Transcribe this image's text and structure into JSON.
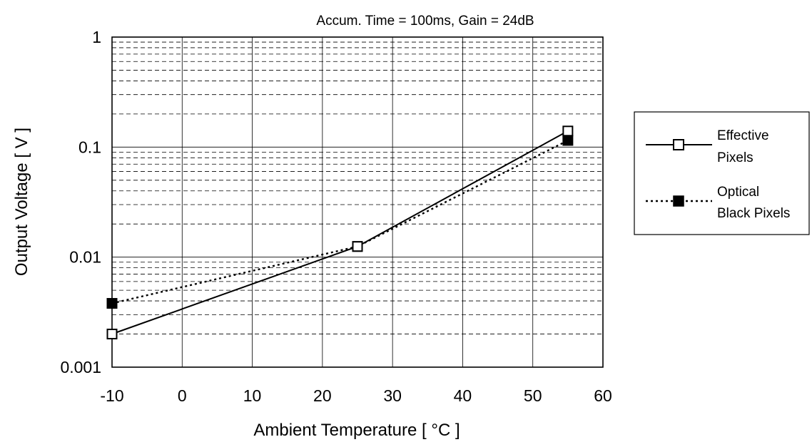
{
  "chart_data": {
    "type": "line",
    "title": "Accum. Time = 100ms,  Gain = 24dB",
    "xlabel": "Ambient Temperature  [ °C ]",
    "ylabel": "Output Voltage  [ V ]",
    "xlim": [
      -10,
      60
    ],
    "ylim": [
      0.001,
      1
    ],
    "yscale": "log",
    "grid": true,
    "legend_position": "right",
    "x_ticks": [
      "-10",
      "0",
      "10",
      "20",
      "30",
      "40",
      "50",
      "60"
    ],
    "y_ticks": [
      "0.001",
      "0.01",
      "0.1",
      "1"
    ],
    "series": [
      {
        "name": "Effective Pixels",
        "line_style": "solid",
        "marker": "hollow-square",
        "x": [
          -10,
          25,
          55
        ],
        "y": [
          0.002,
          0.0125,
          0.14
        ]
      },
      {
        "name": "Optical Black Pixels",
        "line_style": "dotted",
        "marker": "filled-square",
        "x": [
          -10,
          25,
          55
        ],
        "y": [
          0.0038,
          0.0125,
          0.115
        ]
      }
    ],
    "legend": {
      "entries": [
        {
          "line1": "Effective",
          "line2": "Pixels"
        },
        {
          "line1": "Optical",
          "line2": "Black Pixels"
        }
      ]
    }
  }
}
